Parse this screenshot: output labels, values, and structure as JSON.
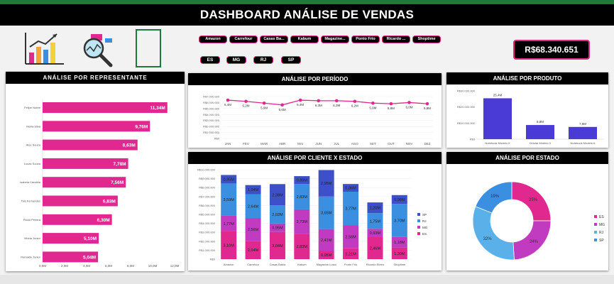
{
  "header": {
    "title": "DASHBOARD  ANÁLISE DE VENDAS"
  },
  "icons": [
    "bar-chart-icon",
    "magnifier-chart-icon",
    "blank-frame-icon"
  ],
  "filters": {
    "clientes": [
      "Amazon",
      "Carrefour",
      "Casas Ba...",
      "Kabum",
      "Magazine...",
      "Ponto Frio",
      "Ricardo ...",
      "Shoptime"
    ],
    "estados": [
      "ES",
      "MG",
      "RJ",
      "SP"
    ]
  },
  "total": "R$68.340.651",
  "colors": {
    "pink": "#e0288f",
    "blue": "#3b8fe0",
    "purple": "#c13bc1",
    "navy": "#3d4fc9",
    "light_blue": "#5ab0e8",
    "violet": "#4a3bd6"
  },
  "panels": {
    "representante": "ANÁLISE POR REPRESENTANTE",
    "periodo": "ANÁLISE POR PERÍODO",
    "produto": "ANÁLISE POR PRODUTO",
    "cliente_estado": "ANÁLISE POR CLIENTE X ESTADO",
    "estado": "ANÁLISE POR ESTADO"
  },
  "chart_data": [
    {
      "id": "representante",
      "type": "bar",
      "orientation": "horizontal",
      "categories": [
        "Felipe Nobre",
        "Maria Silva",
        "Alex Souza",
        "Lucas Souza",
        "Isabela Candida",
        "Tais Fernandes",
        "Paulo Pereira",
        "Vitória Junior",
        "Reinaldo Junior"
      ],
      "values": [
        11.34,
        9.76,
        8.63,
        7.78,
        7.56,
        6.83,
        6.3,
        5.1,
        5.04
      ],
      "data_labels": [
        "11,34M",
        "9,76M",
        "8,63M",
        "7,78M",
        "7,56M",
        "6,83M",
        "6,30M",
        "5,10M",
        "5,04M"
      ],
      "ticks": [
        "0,0M",
        "2,0M",
        "4,0M",
        "6,0M",
        "8,0M",
        "10,0M",
        "12,0M"
      ],
      "xlim": [
        0,
        12
      ]
    },
    {
      "id": "periodo",
      "type": "line",
      "categories": [
        "JAN",
        "FEV",
        "MAR",
        "ABR",
        "MAI",
        "JUN",
        "JUL",
        "AGO",
        "SET",
        "OUT",
        "NOV",
        "DEZ"
      ],
      "values": [
        6.4,
        6.2,
        5.9,
        5.6,
        6.4,
        6.3,
        6.3,
        6.2,
        5.9,
        5.8,
        6.0,
        5.8
      ],
      "data_labels": [
        "6,4M",
        "6,2M",
        "5,9M",
        "5,6M",
        "6,4M",
        "6,3M",
        "6,3M",
        "6,2M",
        "5,9M",
        "5,8M",
        "6,0M",
        "5,8M"
      ],
      "yticks": [
        "R$7.000.000",
        "R$6.000.000",
        "R$5.000.000",
        "R$4.000.000",
        "R$3.000.000",
        "R$2.000.000",
        "R$1.000.000",
        "R$0"
      ],
      "ylim": [
        0,
        7
      ]
    },
    {
      "id": "produto",
      "type": "bar",
      "categories": [
        "Notebook Modelo X",
        "Celular Modelo X",
        "Notebook Modelo A"
      ],
      "values": [
        25.4,
        8.8,
        7.6
      ],
      "data_labels": [
        "25,4M",
        "8,8M",
        "7,6M"
      ],
      "yticks": [
        "R$30.000.000",
        "R$20.000.000",
        "R$10.000.000",
        "R$0"
      ],
      "ylim": [
        0,
        30
      ]
    },
    {
      "id": "cliente_estado",
      "type": "bar",
      "stacked": true,
      "categories": [
        "Amazon",
        "Carrefour",
        "Casas Bahia",
        "Kabum",
        "Magazine Luiza",
        "Ponto Frio",
        "Ricardo Eletro",
        "Shoptime"
      ],
      "series": [
        {
          "name": "ES",
          "values": [
            3.1,
            2.04,
            3.04,
            2.83,
            0.95,
            1.21,
            2.46,
            1.3
          ],
          "data_labels": [
            "3,10M",
            "2,04M",
            "3,04M",
            "2,83M",
            "0,95M",
            "1,21M",
            "2,46M",
            "1,30M"
          ]
        },
        {
          "name": "MG",
          "values": [
            1.77,
            2.56,
            0.95,
            2.73,
            2.41,
            2.56,
            0.93,
            1.18
          ],
          "data_labels": [
            "1,77M",
            "2,56M",
            "0,95M",
            "2,73M",
            "2,41M",
            "2,56M",
            "0,93M",
            "1,18M"
          ]
        },
        {
          "name": "RJ",
          "values": [
            3.59,
            2.64,
            2.02,
            2.83,
            3.65,
            3.77,
            1.75,
            3.7
          ],
          "data_labels": [
            "3,59M",
            "2,64M",
            "2,02M",
            "2,83M",
            "3,65M",
            "3,77M",
            "1,75M",
            "3,70M"
          ]
        },
        {
          "name": "SP",
          "values": [
            0.95,
            1.04,
            2.38,
            0.89,
            2.95,
            0.86,
            1.2,
            0.98
          ],
          "data_labels": [
            "0,95M",
            "1,04M",
            "2,38M",
            "0,89M",
            "2,95M",
            "0,86M",
            "1,20M",
            "0,98M"
          ]
        }
      ],
      "yticks": [
        "R$10.000.000",
        "R$9.000.000",
        "R$8.000.000",
        "R$7.000.000",
        "R$6.000.000",
        "R$5.000.000",
        "R$4.000.000",
        "R$3.000.000",
        "R$2.000.000",
        "R$1.000.000",
        "R$0"
      ],
      "ylim": [
        0,
        10
      ],
      "legend": [
        "SP",
        "RJ",
        "MG",
        "ES"
      ],
      "legend_position": "right"
    },
    {
      "id": "estado",
      "type": "pie",
      "donut": true,
      "categories": [
        "ES",
        "MG",
        "RJ",
        "SP"
      ],
      "values": [
        25,
        24,
        32,
        19
      ],
      "data_labels": [
        "25%",
        "24%",
        "32%",
        "19%"
      ],
      "legend_position": "right"
    }
  ]
}
